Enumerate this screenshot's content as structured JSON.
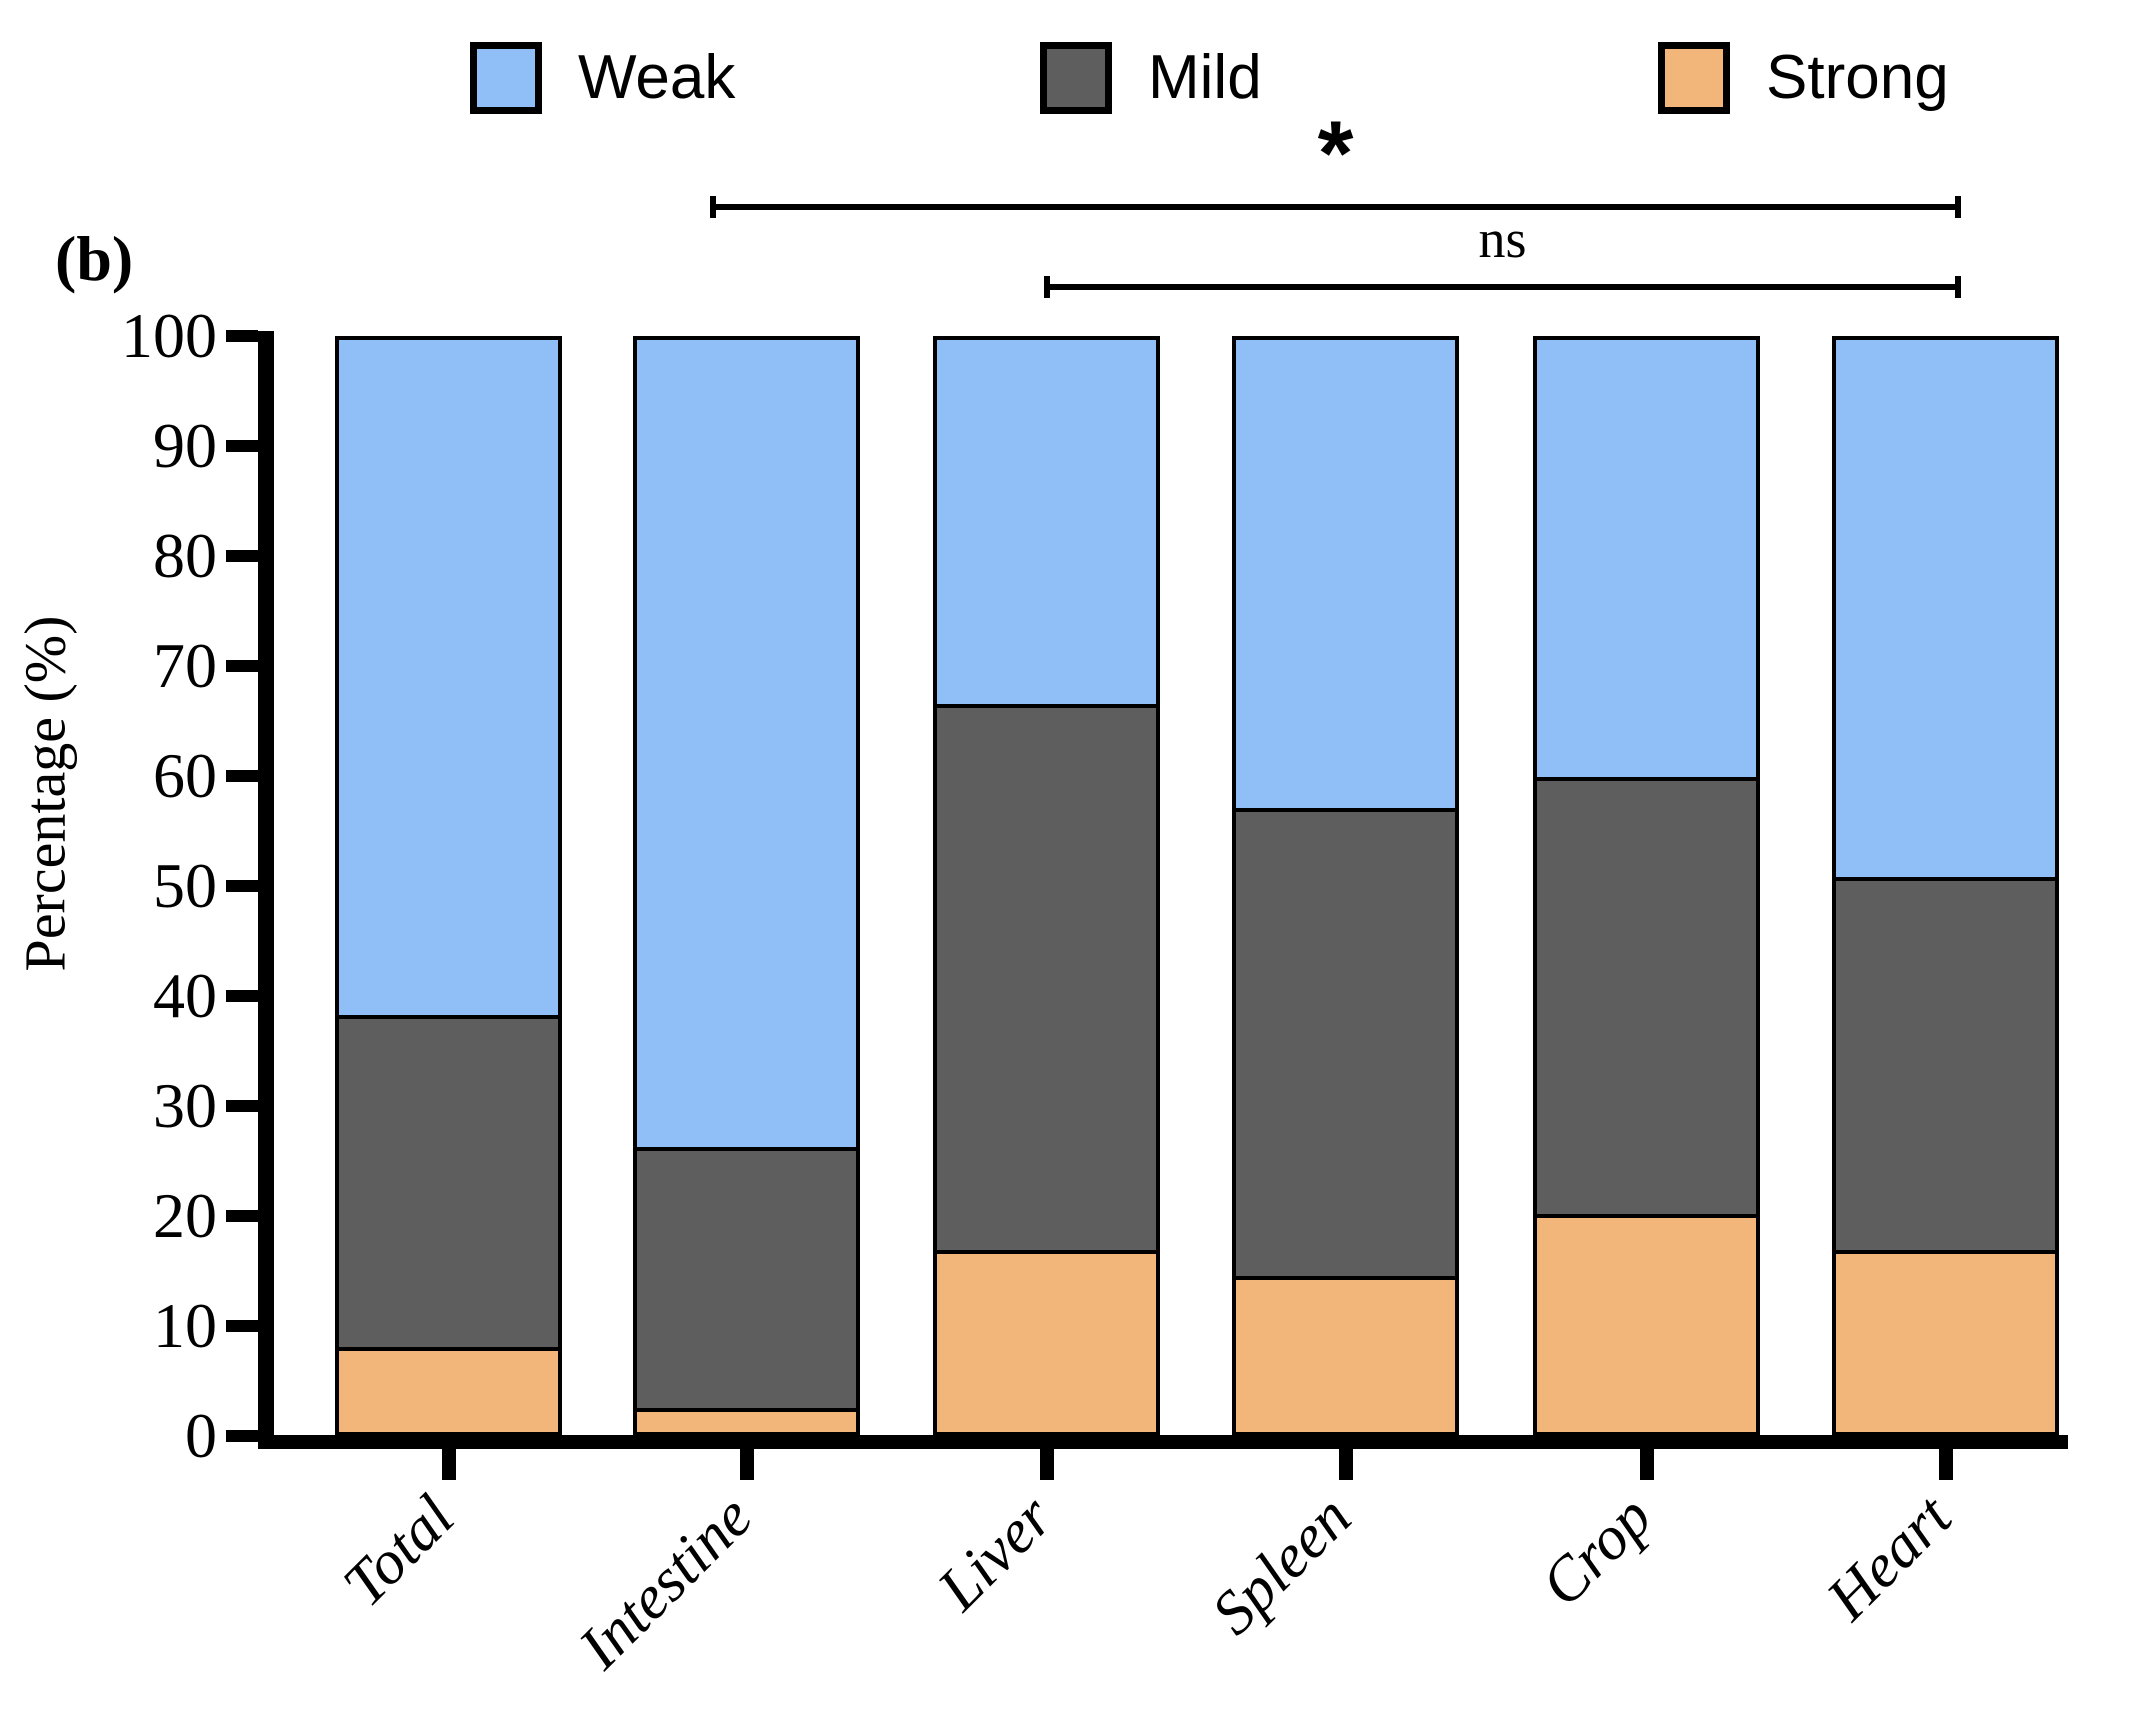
{
  "panel_label": "(b)",
  "legend": {
    "items": [
      {
        "label": "Weak",
        "color": "#90BFF8"
      },
      {
        "label": "Mild",
        "color": "#5E5E5E"
      },
      {
        "label": "Strong",
        "color": "#F2B67B"
      }
    ]
  },
  "y_axis": {
    "title": "Percentage (%)",
    "tick_labels": [
      "100",
      "90",
      "80",
      "70",
      "60",
      "50",
      "40",
      "30",
      "20",
      "10",
      "0"
    ],
    "range": [
      0,
      100
    ]
  },
  "chart_data": {
    "type": "bar",
    "stacked": true,
    "title": "",
    "xlabel": "",
    "ylabel": "Percentage (%)",
    "ylim": [
      0,
      100
    ],
    "grid": false,
    "legend_position": "top",
    "categories": [
      "Total",
      "Intestine",
      "Liver",
      "Spleen",
      "Crop",
      "Heart"
    ],
    "series": [
      {
        "name": "Weak",
        "color": "#90BFF8",
        "values": [
          62.1,
          74.1,
          33.9,
          43.3,
          40.5,
          49.6
        ]
      },
      {
        "name": "Mild",
        "color": "#5E5E5E",
        "values": [
          30.2,
          23.7,
          49.6,
          42.5,
          39.7,
          33.9
        ]
      },
      {
        "name": "Strong",
        "color": "#F2B67B",
        "values": [
          7.7,
          2.2,
          16.5,
          14.2,
          19.8,
          16.5
        ]
      }
    ],
    "annotations": [
      {
        "label": "*",
        "from": "Intestine",
        "to": "Heart",
        "meaning": "significant"
      },
      {
        "label": "ns",
        "from": "Liver",
        "to": "Heart",
        "meaning": "not significant"
      }
    ]
  }
}
